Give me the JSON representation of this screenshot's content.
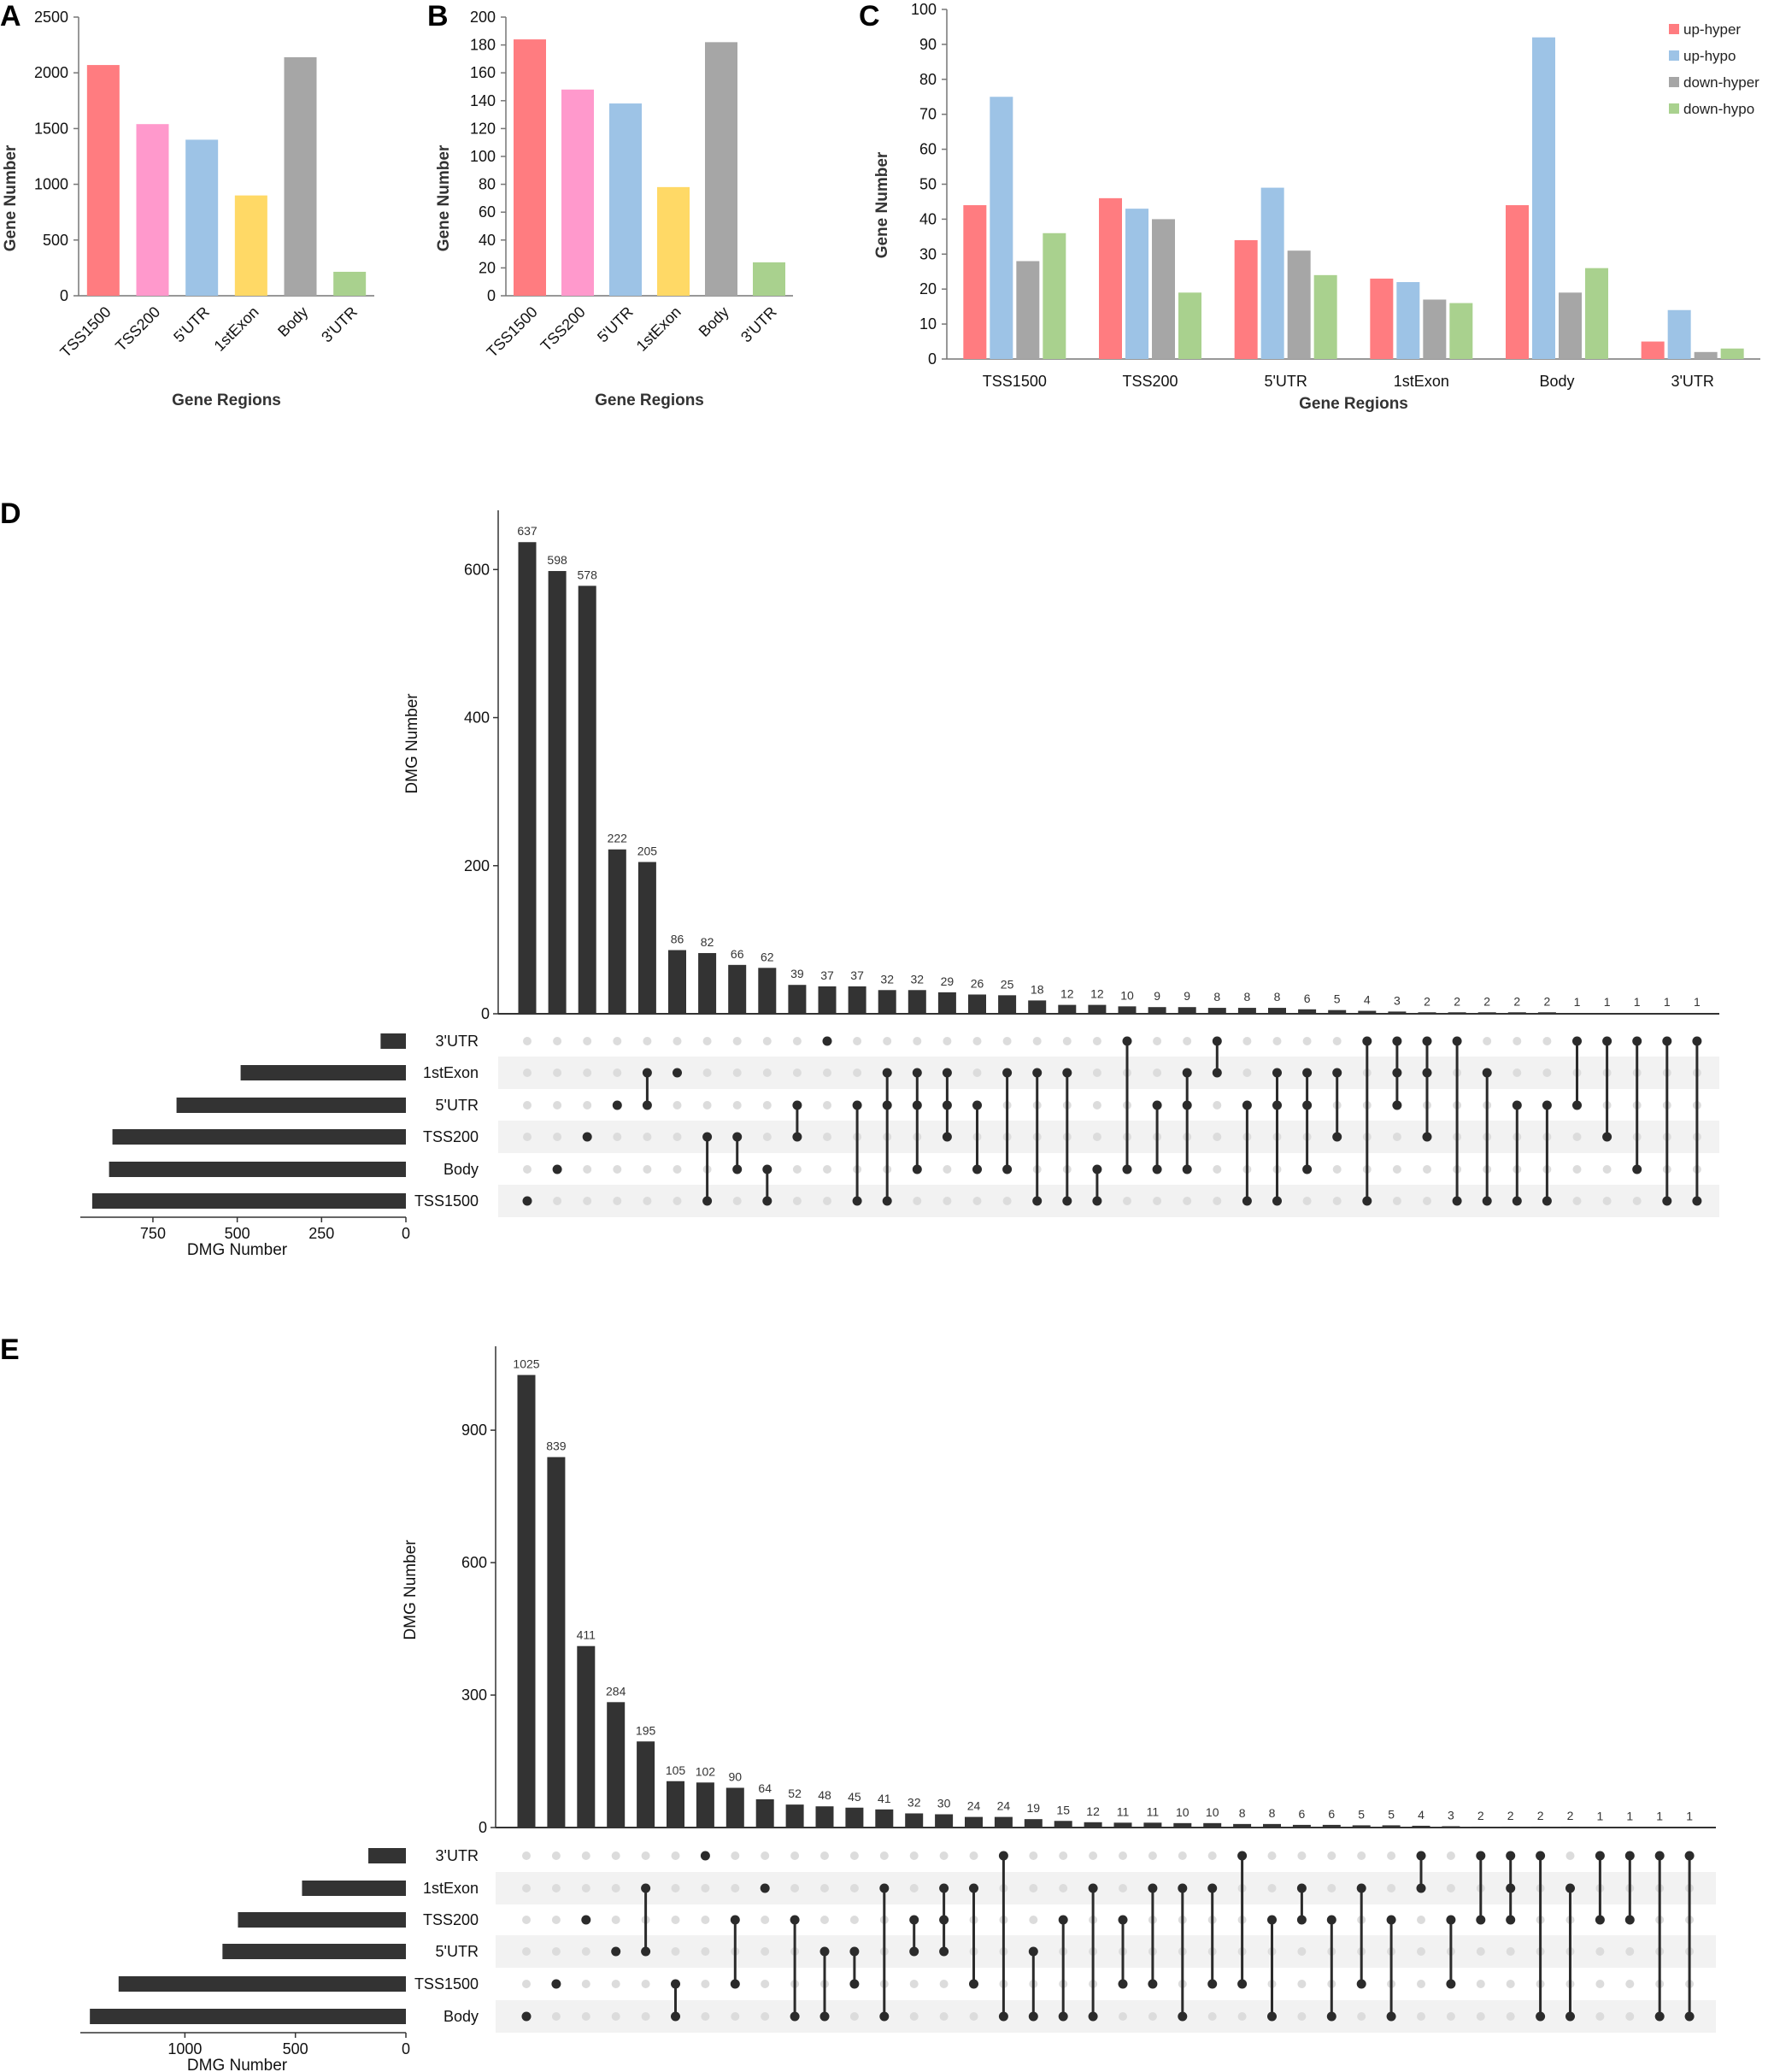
{
  "chart_data": [
    {
      "id": "A",
      "panel_label": "A",
      "type": "bar",
      "title": "",
      "categories": [
        "TSS1500",
        "TSS200",
        "5'UTR",
        "1stExon",
        "Body",
        "3'UTR"
      ],
      "values": [
        2070,
        1540,
        1400,
        900,
        2140,
        215
      ],
      "colors": [
        "#ff7c80",
        "#ff99cc",
        "#9dc3e6",
        "#ffd966",
        "#a6a6a6",
        "#a9d18e"
      ],
      "xlabel": "Gene Regions",
      "ylabel": "Gene Number",
      "ylim": [
        0,
        2500
      ],
      "yticks": [
        0,
        500,
        1000,
        1500,
        2000,
        2500
      ],
      "grid": false
    },
    {
      "id": "B",
      "panel_label": "B",
      "type": "bar",
      "title": "",
      "categories": [
        "TSS1500",
        "TSS200",
        "5'UTR",
        "1stExon",
        "Body",
        "3'UTR"
      ],
      "values": [
        184,
        148,
        138,
        78,
        182,
        24
      ],
      "colors": [
        "#ff7c80",
        "#ff99cc",
        "#9dc3e6",
        "#ffd966",
        "#a6a6a6",
        "#a9d18e"
      ],
      "xlabel": "Gene Regions",
      "ylabel": "Gene Number",
      "ylim": [
        0,
        200
      ],
      "yticks": [
        0,
        20,
        40,
        60,
        80,
        100,
        120,
        140,
        160,
        180,
        200
      ],
      "grid": false
    },
    {
      "id": "C",
      "panel_label": "C",
      "type": "bar",
      "title": "",
      "categories": [
        "TSS1500",
        "TSS200",
        "5'UTR",
        "1stExon",
        "Body",
        "3'UTR"
      ],
      "series": [
        {
          "name": "up-hyper",
          "color": "#ff7c80",
          "values": [
            44,
            46,
            34,
            23,
            44,
            5
          ]
        },
        {
          "name": "up-hypo",
          "color": "#9dc3e6",
          "values": [
            75,
            43,
            49,
            22,
            92,
            14
          ]
        },
        {
          "name": "down-hyper",
          "color": "#a6a6a6",
          "values": [
            28,
            40,
            31,
            17,
            19,
            2
          ]
        },
        {
          "name": "down-hypo",
          "color": "#a9d18e",
          "values": [
            36,
            19,
            24,
            16,
            26,
            3
          ]
        }
      ],
      "xlabel": "Gene Regions",
      "ylabel": "Gene Number",
      "ylim": [
        0,
        100
      ],
      "yticks": [
        0,
        10,
        20,
        30,
        40,
        50,
        60,
        70,
        80,
        90,
        100
      ],
      "legend": "top-right",
      "grid": false
    },
    {
      "id": "D",
      "panel_label": "D",
      "type": "upset",
      "ylabel": "DMG Number",
      "set_xlabel": "DMG Number",
      "ylim": [
        0,
        680
      ],
      "yticks": [
        0,
        200,
        400,
        600
      ],
      "set_ticks": [
        750,
        500,
        250,
        0
      ],
      "set_xmax": 950,
      "sets": [
        "3'UTR",
        "1stExon",
        "5'UTR",
        "TSS200",
        "Body",
        "TSS1500"
      ],
      "set_sizes": [
        75,
        490,
        680,
        870,
        880,
        930
      ],
      "intersections": [
        {
          "value": 637,
          "members": [
            "TSS1500"
          ]
        },
        {
          "value": 598,
          "members": [
            "Body"
          ]
        },
        {
          "value": 578,
          "members": [
            "TSS200"
          ]
        },
        {
          "value": 222,
          "members": [
            "5'UTR"
          ]
        },
        {
          "value": 205,
          "members": [
            "1stExon",
            "5'UTR"
          ]
        },
        {
          "value": 86,
          "members": [
            "1stExon"
          ]
        },
        {
          "value": 82,
          "members": [
            "TSS200",
            "TSS1500"
          ]
        },
        {
          "value": 66,
          "members": [
            "TSS200",
            "Body"
          ]
        },
        {
          "value": 62,
          "members": [
            "Body",
            "TSS1500"
          ]
        },
        {
          "value": 39,
          "members": [
            "5'UTR",
            "TSS200"
          ]
        },
        {
          "value": 37,
          "members": [
            "3'UTR"
          ]
        },
        {
          "value": 37,
          "members": [
            "5'UTR",
            "TSS1500"
          ]
        },
        {
          "value": 32,
          "members": [
            "1stExon",
            "5'UTR",
            "TSS1500"
          ]
        },
        {
          "value": 32,
          "members": [
            "1stExon",
            "5'UTR",
            "Body"
          ]
        },
        {
          "value": 29,
          "members": [
            "1stExon",
            "5'UTR",
            "TSS200"
          ]
        },
        {
          "value": 26,
          "members": [
            "5'UTR",
            "Body"
          ]
        },
        {
          "value": 25,
          "members": [
            "1stExon",
            "Body"
          ]
        },
        {
          "value": 18,
          "members": [
            "1stExon",
            "TSS1500"
          ]
        },
        {
          "value": 12,
          "members": [
            "1stExon",
            "TSS1500"
          ]
        },
        {
          "value": 12,
          "members": [
            "Body",
            "TSS1500"
          ]
        },
        {
          "value": 10,
          "members": [
            "3'UTR",
            "Body"
          ]
        },
        {
          "value": 9,
          "members": [
            "5'UTR",
            "Body"
          ]
        },
        {
          "value": 9,
          "members": [
            "1stExon",
            "5'UTR",
            "Body"
          ]
        },
        {
          "value": 8,
          "members": [
            "3'UTR",
            "1stExon"
          ]
        },
        {
          "value": 8,
          "members": [
            "5'UTR",
            "TSS1500"
          ]
        },
        {
          "value": 8,
          "members": [
            "1stExon",
            "5'UTR",
            "TSS1500"
          ]
        },
        {
          "value": 6,
          "members": [
            "1stExon",
            "5'UTR",
            "Body"
          ]
        },
        {
          "value": 5,
          "members": [
            "1stExon",
            "TSS200"
          ]
        },
        {
          "value": 4,
          "members": [
            "3'UTR",
            "TSS1500"
          ]
        },
        {
          "value": 3,
          "members": [
            "3'UTR",
            "1stExon",
            "5'UTR"
          ]
        },
        {
          "value": 2,
          "members": [
            "3'UTR",
            "1stExon",
            "TSS200"
          ]
        },
        {
          "value": 2,
          "members": [
            "3'UTR",
            "TSS1500"
          ]
        },
        {
          "value": 2,
          "members": [
            "1stExon",
            "TSS1500"
          ]
        },
        {
          "value": 2,
          "members": [
            "5'UTR",
            "TSS1500"
          ]
        },
        {
          "value": 2,
          "members": [
            "5'UTR",
            "TSS1500"
          ]
        },
        {
          "value": 1,
          "members": [
            "3'UTR",
            "5'UTR"
          ]
        },
        {
          "value": 1,
          "members": [
            "3'UTR",
            "TSS200"
          ]
        },
        {
          "value": 1,
          "members": [
            "3'UTR",
            "Body"
          ]
        },
        {
          "value": 1,
          "members": [
            "3'UTR",
            "TSS1500"
          ]
        },
        {
          "value": 1,
          "members": [
            "3'UTR",
            "TSS1500"
          ]
        }
      ]
    },
    {
      "id": "E",
      "panel_label": "E",
      "type": "upset",
      "ylabel": "DMG Number",
      "set_xlabel": "DMG Number",
      "ylim": [
        0,
        1090
      ],
      "yticks": [
        0,
        300,
        600,
        900
      ],
      "set_ticks": [
        1000,
        500,
        0
      ],
      "set_xmax": 1450,
      "sets": [
        "3'UTR",
        "1stExon",
        "TSS200",
        "5'UTR",
        "TSS1500",
        "Body"
      ],
      "set_sizes": [
        170,
        470,
        760,
        830,
        1300,
        1430
      ],
      "intersections": [
        {
          "value": 1025,
          "members": [
            "Body"
          ]
        },
        {
          "value": 839,
          "members": [
            "TSS1500"
          ]
        },
        {
          "value": 411,
          "members": [
            "TSS200"
          ]
        },
        {
          "value": 284,
          "members": [
            "5'UTR"
          ]
        },
        {
          "value": 195,
          "members": [
            "1stExon",
            "5'UTR"
          ]
        },
        {
          "value": 105,
          "members": [
            "TSS1500",
            "Body"
          ]
        },
        {
          "value": 102,
          "members": [
            "3'UTR"
          ]
        },
        {
          "value": 90,
          "members": [
            "TSS200",
            "TSS1500"
          ]
        },
        {
          "value": 64,
          "members": [
            "1stExon"
          ]
        },
        {
          "value": 52,
          "members": [
            "TSS200",
            "Body"
          ]
        },
        {
          "value": 48,
          "members": [
            "5'UTR",
            "Body"
          ]
        },
        {
          "value": 45,
          "members": [
            "5'UTR",
            "TSS1500"
          ]
        },
        {
          "value": 41,
          "members": [
            "1stExon",
            "Body"
          ]
        },
        {
          "value": 32,
          "members": [
            "TSS200",
            "5'UTR"
          ]
        },
        {
          "value": 30,
          "members": [
            "1stExon",
            "TSS200",
            "5'UTR"
          ]
        },
        {
          "value": 24,
          "members": [
            "1stExon",
            "TSS1500"
          ]
        },
        {
          "value": 24,
          "members": [
            "3'UTR",
            "Body"
          ]
        },
        {
          "value": 19,
          "members": [
            "5'UTR",
            "Body"
          ]
        },
        {
          "value": 15,
          "members": [
            "TSS200",
            "Body"
          ]
        },
        {
          "value": 12,
          "members": [
            "1stExon",
            "Body"
          ]
        },
        {
          "value": 11,
          "members": [
            "TSS200",
            "TSS1500"
          ]
        },
        {
          "value": 11,
          "members": [
            "1stExon",
            "TSS1500"
          ]
        },
        {
          "value": 10,
          "members": [
            "1stExon",
            "Body"
          ]
        },
        {
          "value": 10,
          "members": [
            "1stExon",
            "TSS1500"
          ]
        },
        {
          "value": 8,
          "members": [
            "3'UTR",
            "TSS1500"
          ]
        },
        {
          "value": 8,
          "members": [
            "TSS200",
            "Body"
          ]
        },
        {
          "value": 6,
          "members": [
            "1stExon",
            "TSS200"
          ]
        },
        {
          "value": 6,
          "members": [
            "TSS200",
            "Body"
          ]
        },
        {
          "value": 5,
          "members": [
            "1stExon",
            "TSS1500"
          ]
        },
        {
          "value": 5,
          "members": [
            "TSS200",
            "Body"
          ]
        },
        {
          "value": 4,
          "members": [
            "3'UTR",
            "1stExon"
          ]
        },
        {
          "value": 3,
          "members": [
            "TSS200",
            "TSS1500"
          ]
        },
        {
          "value": 2,
          "members": [
            "3'UTR",
            "TSS200"
          ]
        },
        {
          "value": 2,
          "members": [
            "3'UTR",
            "1stExon",
            "TSS200"
          ]
        },
        {
          "value": 2,
          "members": [
            "3'UTR",
            "Body"
          ]
        },
        {
          "value": 2,
          "members": [
            "1stExon",
            "Body"
          ]
        },
        {
          "value": 1,
          "members": [
            "3'UTR",
            "TSS200"
          ]
        },
        {
          "value": 1,
          "members": [
            "3'UTR",
            "TSS200"
          ]
        },
        {
          "value": 1,
          "members": [
            "3'UTR",
            "Body"
          ]
        },
        {
          "value": 1,
          "members": [
            "3'UTR",
            "Body"
          ]
        }
      ]
    }
  ]
}
